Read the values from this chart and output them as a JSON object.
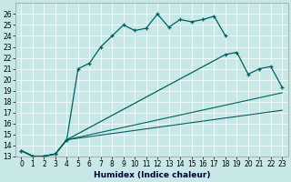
{
  "xlabel": "Humidex (Indice chaleur)",
  "bg_color": "#c8e8e8",
  "line_color": "#006060",
  "ylim": [
    13,
    27
  ],
  "xlim": [
    -0.5,
    23.5
  ],
  "curve1_x": [
    0,
    1,
    2,
    3,
    4,
    5,
    6,
    7,
    8,
    9,
    10,
    11,
    12,
    13,
    14,
    15,
    16,
    17,
    18
  ],
  "curve1_y": [
    13.5,
    13.0,
    13.0,
    13.2,
    14.5,
    21.0,
    21.5,
    23.0,
    24.0,
    25.0,
    24.5,
    24.7,
    26.0,
    24.8,
    25.5,
    25.3,
    25.5,
    25.8,
    24.0
  ],
  "curve2_x": [
    0,
    1,
    2,
    3,
    4,
    18,
    19,
    20,
    21,
    22,
    23
  ],
  "curve2_y": [
    13.5,
    13.0,
    13.0,
    13.2,
    14.5,
    22.3,
    22.5,
    20.5,
    21.0,
    21.2,
    19.3
  ],
  "curve3_x": [
    0,
    1,
    2,
    3,
    4,
    23
  ],
  "curve3_y": [
    13.5,
    13.0,
    13.0,
    13.2,
    14.5,
    18.8
  ],
  "curve4_x": [
    0,
    1,
    2,
    3,
    4,
    23
  ],
  "curve4_y": [
    13.5,
    13.0,
    13.0,
    13.2,
    14.5,
    17.2
  ],
  "yticks": [
    13,
    14,
    15,
    16,
    17,
    18,
    19,
    20,
    21,
    22,
    23,
    24,
    25,
    26
  ],
  "xticks": [
    0,
    1,
    2,
    3,
    4,
    5,
    6,
    7,
    8,
    9,
    10,
    11,
    12,
    13,
    14,
    15,
    16,
    17,
    18,
    19,
    20,
    21,
    22,
    23
  ],
  "grid_color": "#ffffff",
  "tick_fontsize": 5.5,
  "xlabel_fontsize": 6.5
}
